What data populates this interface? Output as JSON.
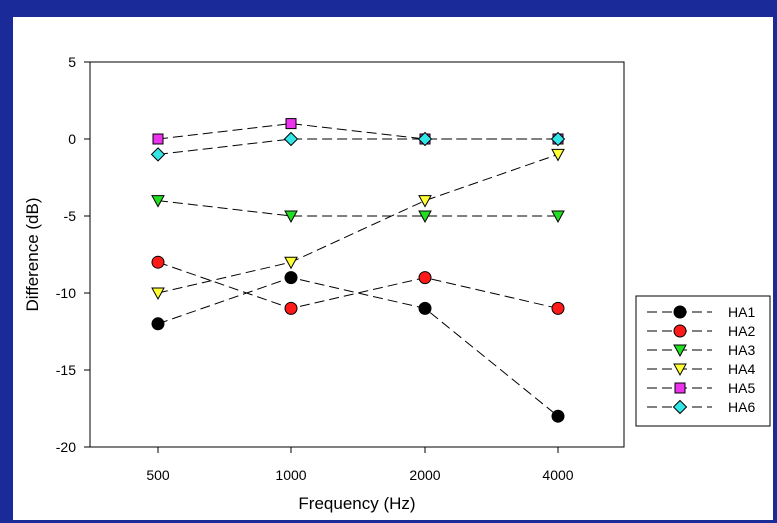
{
  "colors": {
    "frame": "#1a2a99",
    "background": "#ffffff",
    "line": "#000000"
  },
  "chart_data": {
    "type": "line",
    "title": "",
    "xlabel": "Frequency (Hz)",
    "ylabel": "Difference (dB)",
    "categories": [
      "500",
      "1000",
      "2000",
      "4000"
    ],
    "ylim": [
      -20,
      5
    ],
    "yticks": [
      5,
      0,
      -5,
      -10,
      -15,
      -20
    ],
    "grid": false,
    "legend_position": "right",
    "line_style": "long-dash",
    "series": [
      {
        "name": "HA1",
        "values": [
          -12,
          -9,
          -11,
          -18
        ],
        "marker": "circle",
        "color": "#000000"
      },
      {
        "name": "HA2",
        "values": [
          -8,
          -11,
          -9,
          -11
        ],
        "marker": "circle",
        "color": "#ff1a1a"
      },
      {
        "name": "HA3",
        "values": [
          -4,
          -5,
          -5,
          -5
        ],
        "marker": "triangle-down",
        "color": "#22dd22"
      },
      {
        "name": "HA4",
        "values": [
          -10,
          -8,
          -4,
          -1
        ],
        "marker": "triangle-down",
        "color": "#ffff33"
      },
      {
        "name": "HA5",
        "values": [
          0,
          1,
          0,
          0
        ],
        "marker": "square",
        "color": "#ee33ee"
      },
      {
        "name": "HA6",
        "values": [
          -1,
          0,
          0,
          0
        ],
        "marker": "diamond",
        "color": "#33e6e6"
      }
    ]
  }
}
